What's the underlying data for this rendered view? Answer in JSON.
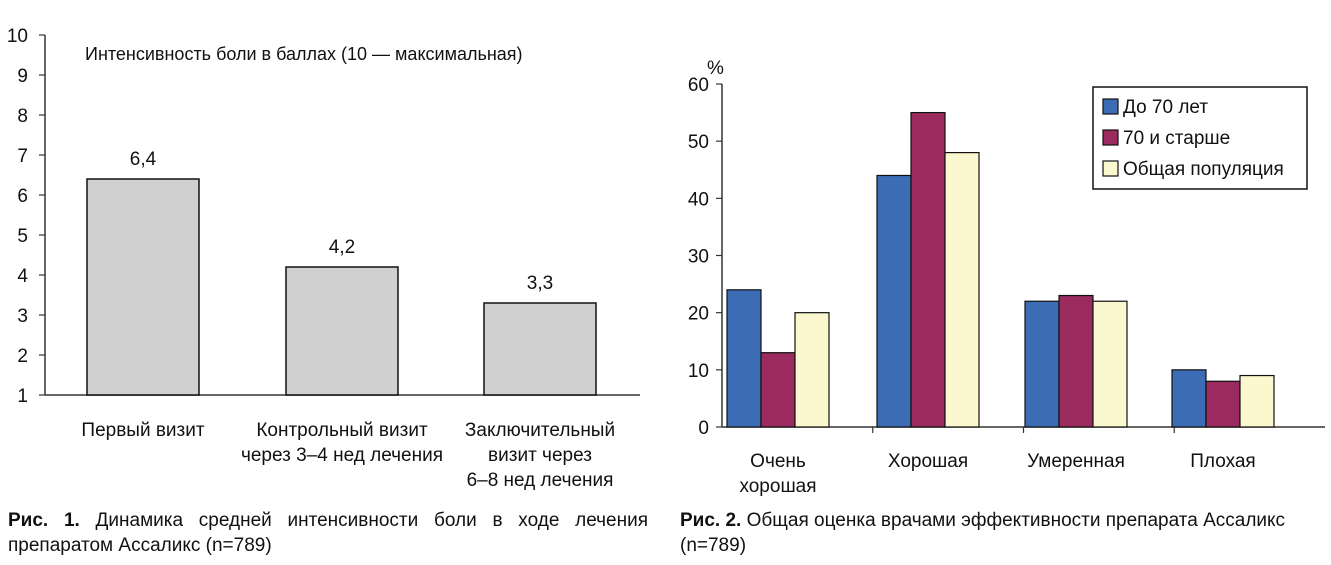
{
  "chart_data": [
    {
      "type": "bar",
      "title": "Интенсивность боли в баллах (10 — максимальная)",
      "categories": [
        [
          "Первый визит"
        ],
        [
          "Контрольный визит",
          "через 3–4 нед лечения"
        ],
        [
          "Заключительный",
          "визит через",
          "6–8 нед лечения"
        ]
      ],
      "values": [
        6.4,
        4.2,
        3.3
      ],
      "data_labels": [
        "6,4",
        "4,2",
        "3,3"
      ],
      "ylim": [
        1,
        10
      ],
      "yticks": [
        "1",
        "2",
        "3",
        "4",
        "5",
        "6",
        "7",
        "8",
        "9",
        "10"
      ],
      "bar_color": "#d0d0d0",
      "grid": false,
      "caption": {
        "label": "Рис. 1.",
        "text": "Динамика средней интенсивности боли в ходе лечения препаратом Ассаликс (n=789)"
      }
    },
    {
      "type": "bar",
      "ylabel": "%",
      "categories": [
        [
          "Очень",
          "хорошая"
        ],
        [
          "Хорошая"
        ],
        [
          "Умеренная"
        ],
        [
          "Плохая"
        ]
      ],
      "series": [
        {
          "name": "До 70 лет",
          "values": [
            24,
            44,
            22,
            10
          ],
          "color": "#3c6db4"
        },
        {
          "name": "70 и старше",
          "values": [
            13,
            55,
            23,
            8
          ],
          "color": "#9b2a5e"
        },
        {
          "name": "Общая популяция",
          "values": [
            20,
            48,
            22,
            9
          ],
          "color": "#fbf7cf"
        }
      ],
      "ylim": [
        0,
        60
      ],
      "yticks": [
        "0",
        "10",
        "20",
        "30",
        "40",
        "50",
        "60"
      ],
      "legend": "top-right",
      "grid": false,
      "caption": {
        "label": "Рис. 2.",
        "text": "Общая оценка врачами эффективности препарата Ассаликс (n=789)"
      }
    }
  ]
}
